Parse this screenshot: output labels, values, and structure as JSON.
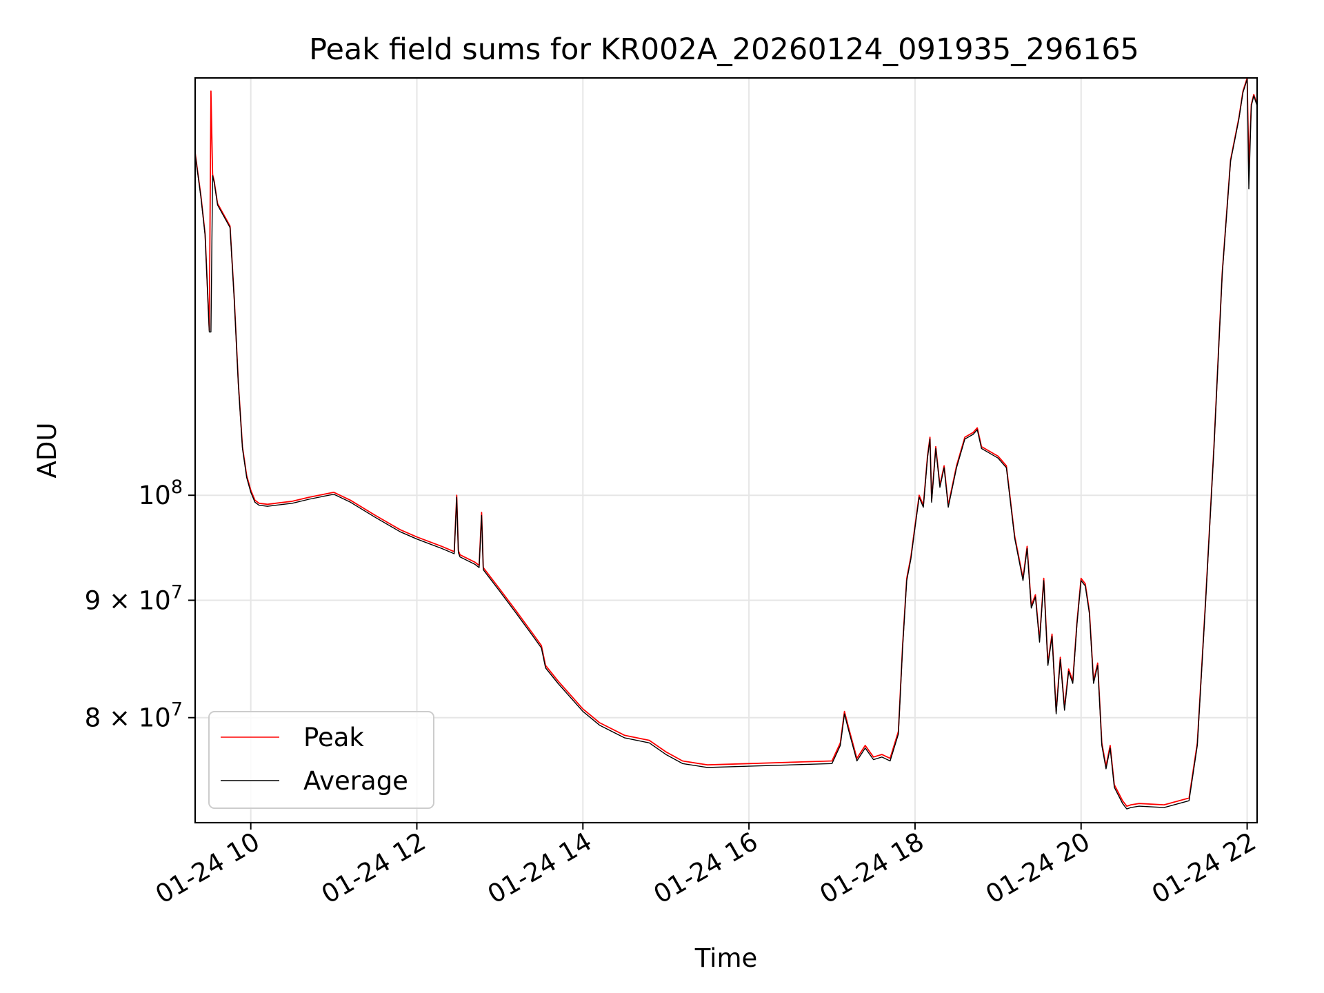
{
  "chart_data": {
    "type": "line",
    "title": "Peak field sums for KR002A_20260124_091935_296165",
    "xlabel": "Time",
    "ylabel": "ADU",
    "yscale": "log",
    "xlim": [
      9.33,
      22.12
    ],
    "ylim": [
      72000000,
      152000000
    ],
    "x_ticks": [
      {
        "value": 10,
        "label": "01-24 10"
      },
      {
        "value": 12,
        "label": "01-24 12"
      },
      {
        "value": 14,
        "label": "01-24 14"
      },
      {
        "value": 16,
        "label": "01-24 16"
      },
      {
        "value": 18,
        "label": "01-24 18"
      },
      {
        "value": 20,
        "label": "01-24 20"
      },
      {
        "value": 22,
        "label": "01-24 22"
      }
    ],
    "y_ticks": [
      {
        "value": 100000000,
        "base": "10",
        "exp": "8"
      },
      {
        "value": 90000000,
        "base": "9 × 10",
        "exp": "7"
      },
      {
        "value": 80000000,
        "base": "8 × 10",
        "exp": "7"
      }
    ],
    "grid": true,
    "legend_position": "lower-left",
    "series": [
      {
        "name": "Peak",
        "color": "#ff0000",
        "x": [
          9.33,
          9.4,
          9.45,
          9.5,
          9.52,
          9.54,
          9.56,
          9.6,
          9.7,
          9.75,
          9.8,
          9.85,
          9.9,
          9.95,
          10.0,
          10.05,
          10.1,
          10.2,
          10.3,
          10.5,
          10.7,
          11.0,
          11.2,
          11.5,
          11.8,
          12.0,
          12.3,
          12.45,
          12.48,
          12.5,
          12.52,
          12.7,
          12.75,
          12.78,
          12.8,
          13.0,
          13.2,
          13.4,
          13.5,
          13.55,
          13.7,
          14.0,
          14.2,
          14.5,
          14.8,
          15.0,
          15.2,
          15.5,
          16.0,
          16.5,
          17.0,
          17.1,
          17.15,
          17.2,
          17.3,
          17.4,
          17.5,
          17.6,
          17.7,
          17.8,
          17.85,
          17.9,
          17.95,
          18.0,
          18.05,
          18.1,
          18.15,
          18.18,
          18.2,
          18.25,
          18.3,
          18.35,
          18.4,
          18.5,
          18.6,
          18.7,
          18.75,
          18.8,
          18.9,
          19.0,
          19.1,
          19.2,
          19.3,
          19.35,
          19.4,
          19.45,
          19.5,
          19.55,
          19.6,
          19.65,
          19.7,
          19.75,
          19.8,
          19.85,
          19.9,
          19.95,
          20.0,
          20.05,
          20.1,
          20.15,
          20.2,
          20.25,
          20.3,
          20.35,
          20.4,
          20.45,
          20.5,
          20.55,
          20.6,
          20.7,
          21.0,
          21.3,
          21.4,
          21.5,
          21.6,
          21.7,
          21.8,
          21.9,
          21.95,
          22.0,
          22.02,
          22.05,
          22.08,
          22.12
        ],
        "y": [
          141000000,
          135000000,
          130000000,
          118000000,
          150000000,
          138000000,
          137000000,
          134000000,
          132000000,
          131000000,
          122000000,
          112000000,
          105000000,
          102000000,
          100500000,
          99500000,
          99200000,
          99100000,
          99200000,
          99400000,
          99800000,
          100300000,
          99500000,
          98000000,
          96600000,
          95900000,
          95000000,
          94500000,
          100000000,
          94600000,
          94200000,
          93500000,
          93200000,
          98300000,
          93000000,
          91000000,
          89000000,
          87000000,
          86000000,
          84300000,
          83000000,
          80700000,
          79600000,
          78600000,
          78200000,
          77300000,
          76600000,
          76300000,
          76400000,
          76500000,
          76600000,
          78000000,
          80500000,
          79200000,
          76800000,
          77800000,
          76900000,
          77100000,
          76800000,
          78900000,
          86000000,
          92000000,
          94000000,
          97000000,
          100000000,
          99000000,
          104000000,
          106000000,
          99500000,
          105000000,
          101000000,
          103000000,
          99000000,
          103000000,
          106000000,
          106500000,
          107000000,
          105000000,
          104500000,
          104000000,
          103000000,
          96000000,
          92000000,
          95000000,
          89500000,
          90500000,
          86500000,
          92000000,
          84500000,
          87000000,
          80500000,
          85000000,
          80800000,
          84000000,
          83000000,
          88000000,
          92000000,
          91500000,
          89000000,
          83000000,
          84500000,
          78000000,
          76200000,
          77800000,
          74800000,
          74200000,
          73600000,
          73200000,
          73300000,
          73400000,
          73300000,
          73800000,
          78000000,
          90000000,
          105000000,
          125000000,
          140000000,
          146000000,
          150000000,
          152000000,
          139000000,
          148000000,
          149500000,
          148000000
        ]
      },
      {
        "name": "Average",
        "color": "#000000",
        "x": [
          9.33,
          9.4,
          9.45,
          9.5,
          9.52,
          9.54,
          9.56,
          9.6,
          9.7,
          9.75,
          9.8,
          9.85,
          9.9,
          9.95,
          10.0,
          10.05,
          10.1,
          10.2,
          10.3,
          10.5,
          10.7,
          11.0,
          11.2,
          11.5,
          11.8,
          12.0,
          12.3,
          12.45,
          12.48,
          12.5,
          12.52,
          12.7,
          12.75,
          12.78,
          12.8,
          13.0,
          13.2,
          13.4,
          13.5,
          13.55,
          13.7,
          14.0,
          14.2,
          14.5,
          14.8,
          15.0,
          15.2,
          15.5,
          16.0,
          16.5,
          17.0,
          17.1,
          17.15,
          17.2,
          17.3,
          17.4,
          17.5,
          17.6,
          17.7,
          17.8,
          17.85,
          17.9,
          17.95,
          18.0,
          18.05,
          18.1,
          18.15,
          18.18,
          18.2,
          18.25,
          18.3,
          18.35,
          18.4,
          18.5,
          18.6,
          18.7,
          18.75,
          18.8,
          18.9,
          19.0,
          19.1,
          19.2,
          19.3,
          19.35,
          19.4,
          19.45,
          19.5,
          19.55,
          19.6,
          19.65,
          19.7,
          19.75,
          19.8,
          19.85,
          19.9,
          19.95,
          20.0,
          20.05,
          20.1,
          20.15,
          20.2,
          20.25,
          20.3,
          20.35,
          20.4,
          20.45,
          20.5,
          20.55,
          20.6,
          20.7,
          21.0,
          21.3,
          21.4,
          21.5,
          21.6,
          21.7,
          21.8,
          21.9,
          21.95,
          22.0,
          22.02,
          22.05,
          22.08,
          22.12
        ],
        "y": [
          140800000,
          134800000,
          129800000,
          117800000,
          117800000,
          137800000,
          136800000,
          133800000,
          131800000,
          130800000,
          121800000,
          111800000,
          104800000,
          101800000,
          100300000,
          99300000,
          99000000,
          98900000,
          99000000,
          99200000,
          99600000,
          100100000,
          99300000,
          97800000,
          96400000,
          95700000,
          94800000,
          94300000,
          99800000,
          94400000,
          94000000,
          93300000,
          93000000,
          98000000,
          92800000,
          90800000,
          88800000,
          86800000,
          85800000,
          84100000,
          82800000,
          80500000,
          79400000,
          78400000,
          78000000,
          77100000,
          76400000,
          76100000,
          76200000,
          76300000,
          76400000,
          77800000,
          80300000,
          79000000,
          76600000,
          77600000,
          76700000,
          76900000,
          76600000,
          78700000,
          85800000,
          91800000,
          93800000,
          96800000,
          99800000,
          98800000,
          103800000,
          105800000,
          99300000,
          104800000,
          100800000,
          102800000,
          98800000,
          102800000,
          105800000,
          106300000,
          106800000,
          104800000,
          104300000,
          103800000,
          102800000,
          95800000,
          91800000,
          94800000,
          89300000,
          90300000,
          86300000,
          91800000,
          84300000,
          86800000,
          80300000,
          84800000,
          80600000,
          83800000,
          82800000,
          87800000,
          91800000,
          91300000,
          88800000,
          82800000,
          84300000,
          77800000,
          76000000,
          77600000,
          74600000,
          74000000,
          73400000,
          73000000,
          73100000,
          73200000,
          73100000,
          73600000,
          77800000,
          89800000,
          104800000,
          124800000,
          139800000,
          145800000,
          149800000,
          151800000,
          136000000,
          147800000,
          149300000,
          147800000
        ]
      }
    ]
  }
}
